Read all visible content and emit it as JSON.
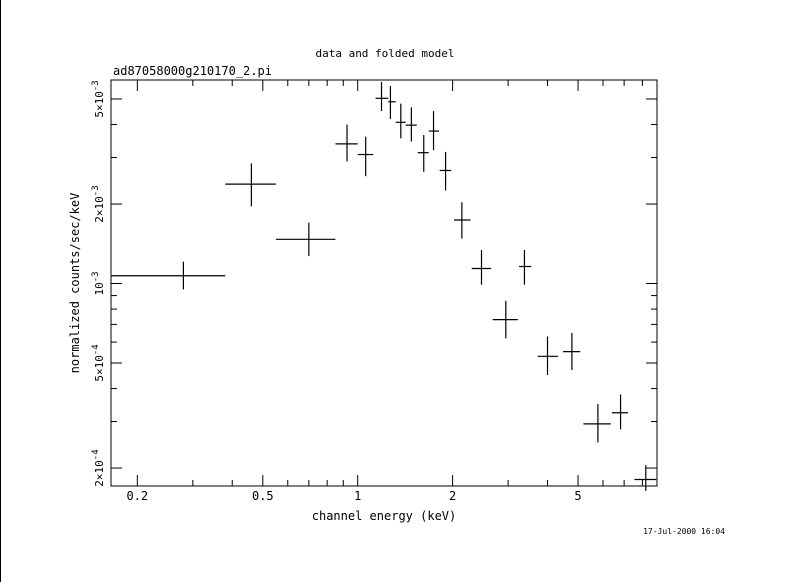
{
  "chart_data": {
    "type": "scatter",
    "title": "data and folded model",
    "subtitle": "ad87058000g210170_2.pi",
    "xlabel": "channel energy (keV)",
    "ylabel": "normalized counts/sec/keV",
    "x_scale": "log",
    "y_scale": "log",
    "xlim": [
      0.165,
      8.9
    ],
    "ylim": [
      0.000171,
      0.0059
    ],
    "x_ticks": [
      {
        "value": 0.2,
        "label": "0.2"
      },
      {
        "value": 0.5,
        "label": "0.5"
      },
      {
        "value": 1,
        "label": "1"
      },
      {
        "value": 2,
        "label": "2"
      },
      {
        "value": 5,
        "label": "5"
      }
    ],
    "y_ticks": [
      {
        "value": 0.0002,
        "mantissa": "2",
        "exponent": "-4"
      },
      {
        "value": 0.0005,
        "mantissa": "5",
        "exponent": "-4"
      },
      {
        "value": 0.001,
        "mantissa": "10",
        "exponent": "-3"
      },
      {
        "value": 0.002,
        "mantissa": "2",
        "exponent": "-3"
      },
      {
        "value": 0.005,
        "mantissa": "5",
        "exponent": "-3"
      }
    ],
    "grid": false,
    "legend": "none",
    "timestamp": "17-Jul-2000 16:04",
    "points": [
      {
        "x": 0.28,
        "y": 0.00107,
        "xlo": 0.165,
        "xhi": 0.38,
        "ylo": 0.00095,
        "yhi": 0.00121
      },
      {
        "x": 0.46,
        "y": 0.00238,
        "xlo": 0.38,
        "xhi": 0.55,
        "ylo": 0.00196,
        "yhi": 0.00285
      },
      {
        "x": 0.7,
        "y": 0.00147,
        "xlo": 0.55,
        "xhi": 0.85,
        "ylo": 0.00127,
        "yhi": 0.0017
      },
      {
        "x": 0.925,
        "y": 0.00338,
        "xlo": 0.85,
        "xhi": 1.0,
        "ylo": 0.0029,
        "yhi": 0.004
      },
      {
        "x": 1.06,
        "y": 0.00308,
        "xlo": 1.0,
        "xhi": 1.12,
        "ylo": 0.00255,
        "yhi": 0.0036
      },
      {
        "x": 1.19,
        "y": 0.00503,
        "xlo": 1.14,
        "xhi": 1.25,
        "ylo": 0.0045,
        "yhi": 0.0058
      },
      {
        "x": 1.27,
        "y": 0.00488,
        "xlo": 1.25,
        "xhi": 1.32,
        "ylo": 0.0042,
        "yhi": 0.0056
      },
      {
        "x": 1.37,
        "y": 0.00408,
        "xlo": 1.32,
        "xhi": 1.42,
        "ylo": 0.00355,
        "yhi": 0.0048
      },
      {
        "x": 1.48,
        "y": 0.00398,
        "xlo": 1.42,
        "xhi": 1.54,
        "ylo": 0.00345,
        "yhi": 0.00465
      },
      {
        "x": 1.62,
        "y": 0.00313,
        "xlo": 1.55,
        "xhi": 1.68,
        "ylo": 0.00265,
        "yhi": 0.00365
      },
      {
        "x": 1.74,
        "y": 0.00378,
        "xlo": 1.68,
        "xhi": 1.81,
        "ylo": 0.0032,
        "yhi": 0.0045
      },
      {
        "x": 1.9,
        "y": 0.00268,
        "xlo": 1.82,
        "xhi": 1.98,
        "ylo": 0.00225,
        "yhi": 0.00315
      },
      {
        "x": 2.14,
        "y": 0.00174,
        "xlo": 2.02,
        "xhi": 2.28,
        "ylo": 0.00148,
        "yhi": 0.00203
      },
      {
        "x": 2.47,
        "y": 0.00114,
        "xlo": 2.3,
        "xhi": 2.65,
        "ylo": 0.00099,
        "yhi": 0.00134
      },
      {
        "x": 2.95,
        "y": 0.00073,
        "xlo": 2.68,
        "xhi": 3.22,
        "ylo": 0.00062,
        "yhi": 0.00086
      },
      {
        "x": 3.38,
        "y": 0.00116,
        "xlo": 3.25,
        "xhi": 3.55,
        "ylo": 0.00099,
        "yhi": 0.00134
      },
      {
        "x": 4.0,
        "y": 0.00053,
        "xlo": 3.72,
        "xhi": 4.32,
        "ylo": 0.00045,
        "yhi": 0.00063
      },
      {
        "x": 4.78,
        "y": 0.000552,
        "xlo": 4.48,
        "xhi": 5.08,
        "ylo": 0.00047,
        "yhi": 0.00065
      },
      {
        "x": 5.78,
        "y": 0.000294,
        "xlo": 5.2,
        "xhi": 6.35,
        "ylo": 0.00025,
        "yhi": 0.00035
      },
      {
        "x": 6.82,
        "y": 0.000324,
        "xlo": 6.4,
        "xhi": 7.2,
        "ylo": 0.00028,
        "yhi": 0.00038
      },
      {
        "x": 8.2,
        "y": 0.000181,
        "xlo": 7.55,
        "xhi": 8.85,
        "ylo": 0.000164,
        "yhi": 0.000205
      }
    ]
  }
}
